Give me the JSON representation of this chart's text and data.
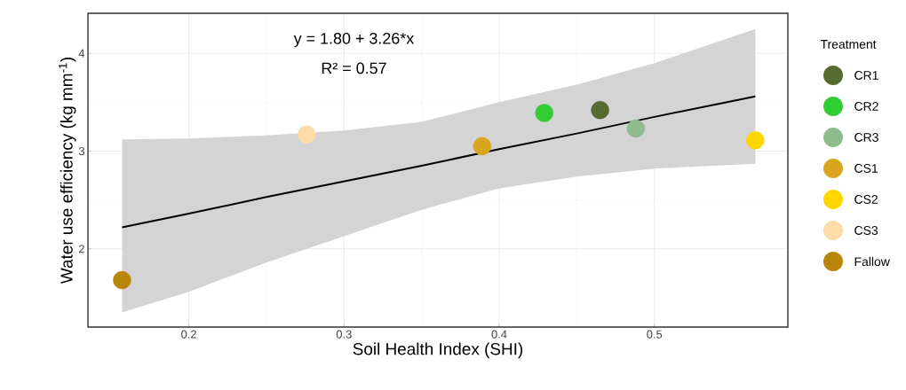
{
  "chart_data": {
    "type": "scatter",
    "xlabel": "Soil Health Index (SHI)",
    "ylabel": "Water use efficiency (kg mm$^{-1}$)",
    "legend_title": "Treatment",
    "legend": "right",
    "grid": true,
    "marker": "circle",
    "xlim": [
      0.135,
      0.586
    ],
    "ylim": [
      1.2,
      4.41
    ],
    "xticks": [
      0.2,
      0.3,
      0.4,
      0.5
    ],
    "yticks": [
      2,
      3,
      4
    ],
    "annotations": [
      "y = 1.80 + 3.26*x",
      "R² = 0.57"
    ],
    "series": [
      {
        "name": "CR1",
        "color": "#556b2f",
        "x": [
          0.465
        ],
        "values": [
          3.42
        ]
      },
      {
        "name": "CR2",
        "color": "#32cd32",
        "x": [
          0.429
        ],
        "values": [
          3.39
        ]
      },
      {
        "name": "CR3",
        "color": "#8fbc8f",
        "x": [
          0.488
        ],
        "values": [
          3.23
        ]
      },
      {
        "name": "CS1",
        "color": "#daa520",
        "x": [
          0.389
        ],
        "values": [
          3.05
        ]
      },
      {
        "name": "CS2",
        "color": "#ffd700",
        "x": [
          0.565
        ],
        "values": [
          3.11
        ]
      },
      {
        "name": "CS3",
        "color": "#fddcaa",
        "x": [
          0.276
        ],
        "values": [
          3.17
        ]
      },
      {
        "name": "Fallow",
        "color": "#b8860b",
        "x": [
          0.157
        ],
        "values": [
          1.68
        ]
      },
      {
        "type": "line",
        "color": "#000000",
        "marker": "none",
        "x": [
          0.157,
          0.2,
          0.25,
          0.3,
          0.35,
          0.4,
          0.45,
          0.5,
          0.565
        ],
        "values": [
          2.22,
          2.36,
          2.53,
          2.69,
          2.85,
          3.02,
          3.18,
          3.35,
          3.56
        ],
        "lower": [
          1.35,
          1.56,
          1.86,
          2.13,
          2.4,
          2.62,
          2.74,
          2.82,
          2.87
        ],
        "upper": [
          3.12,
          3.13,
          3.16,
          3.21,
          3.3,
          3.5,
          3.68,
          3.9,
          4.25
        ]
      }
    ]
  }
}
